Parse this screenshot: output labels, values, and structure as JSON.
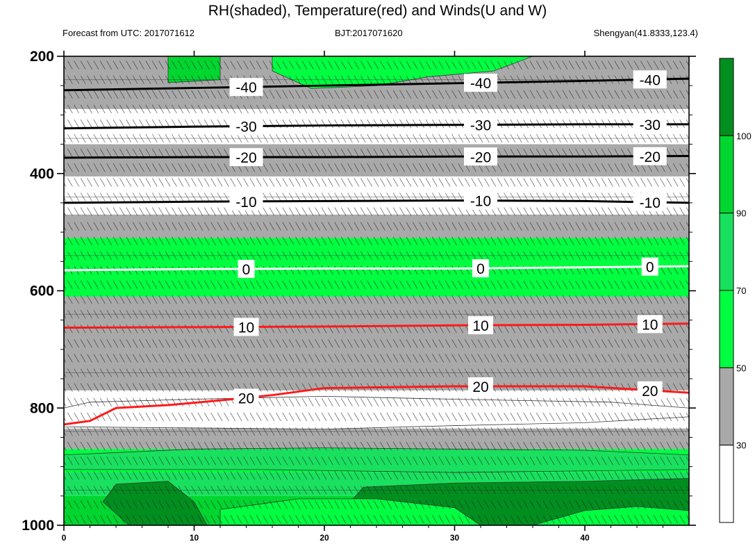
{
  "header": {
    "title": "RH(shaded), Temperature(red) and Winds(U and W)",
    "left": "Forecast from UTC: 2017071612",
    "center": "BJT:2017071620",
    "right": "Shengyan(41.8333,123.4)"
  },
  "colors": {
    "rh_lt30": "#ffffff",
    "rh_30_50": "#a9a9a9",
    "rh_50_70": "#00ff41",
    "rh_70_90": "#19e05e",
    "rh_90_100": "#00d62f",
    "rh_gt100": "#008f1f",
    "temp_positive": "#ff1a1a",
    "temp_zero": "#ffffff",
    "temp_negative": "#000000"
  },
  "chart_data": {
    "type": "heatmap",
    "xlim": [
      0,
      48
    ],
    "ylim": [
      1000,
      200
    ],
    "x_ticks": [
      "0",
      "10",
      "20",
      "30",
      "40"
    ],
    "y_ticks": [
      "200",
      "400",
      "600",
      "800",
      "1000"
    ],
    "colorbar": {
      "levels": [
        "30",
        "50",
        "70",
        "90",
        "100"
      ],
      "colors": [
        "#ffffff",
        "#a9a9a9",
        "#00ff41",
        "#19e05e",
        "#00d62f",
        "#008f1f"
      ]
    },
    "temperature_contours": [
      {
        "value": -40,
        "label": "-40",
        "color": "#000000",
        "points": [
          [
            0,
            258
          ],
          [
            10,
            254
          ],
          [
            20,
            250
          ],
          [
            30,
            246
          ],
          [
            40,
            242
          ],
          [
            48,
            238
          ]
        ]
      },
      {
        "value": -30,
        "label": "-30",
        "color": "#000000",
        "points": [
          [
            0,
            323
          ],
          [
            10,
            320
          ],
          [
            20,
            318
          ],
          [
            30,
            317
          ],
          [
            40,
            316
          ],
          [
            48,
            316
          ]
        ]
      },
      {
        "value": -20,
        "label": "-20",
        "color": "#000000",
        "points": [
          [
            0,
            373
          ],
          [
            10,
            372
          ],
          [
            20,
            372
          ],
          [
            30,
            371
          ],
          [
            40,
            371
          ],
          [
            48,
            370
          ]
        ]
      },
      {
        "value": -10,
        "label": "-10",
        "color": "#000000",
        "points": [
          [
            0,
            450
          ],
          [
            10,
            448
          ],
          [
            20,
            447
          ],
          [
            30,
            446
          ],
          [
            40,
            447
          ],
          [
            48,
            450
          ]
        ]
      },
      {
        "value": 0,
        "label": "0",
        "color": "#ffffff",
        "points": [
          [
            0,
            565
          ],
          [
            10,
            563
          ],
          [
            20,
            562
          ],
          [
            30,
            562
          ],
          [
            40,
            560
          ],
          [
            48,
            558
          ]
        ]
      },
      {
        "value": 10,
        "label": "10",
        "color": "#ff1a1a",
        "points": [
          [
            0,
            663
          ],
          [
            10,
            662
          ],
          [
            20,
            661
          ],
          [
            30,
            659
          ],
          [
            40,
            658
          ],
          [
            48,
            656
          ]
        ]
      },
      {
        "value": 20,
        "label": "20",
        "color": "#ff1a1a",
        "points": [
          [
            0,
            828
          ],
          [
            2,
            822
          ],
          [
            4,
            800
          ],
          [
            8,
            795
          ],
          [
            12,
            787
          ],
          [
            16,
            778
          ],
          [
            20,
            766
          ],
          [
            30,
            763
          ],
          [
            40,
            763
          ],
          [
            48,
            774
          ]
        ]
      }
    ],
    "rh_bands": [
      {
        "class": "rh_30_50",
        "top": 200,
        "bottom": 290
      },
      {
        "class": "rh_lt30",
        "top": 290,
        "bottom": 350
      },
      {
        "class": "rh_30_50",
        "top": 350,
        "bottom": 405
      },
      {
        "class": "rh_lt30",
        "top": 405,
        "bottom": 470
      },
      {
        "class": "rh_30_50",
        "top": 470,
        "bottom": 510
      },
      {
        "class": "rh_50_70",
        "top": 510,
        "bottom": 610
      },
      {
        "class": "rh_30_50",
        "top": 610,
        "bottom": 770
      },
      {
        "class": "rh_lt30",
        "top": 770,
        "bottom": 835
      },
      {
        "class": "rh_30_50",
        "top": 835,
        "bottom": 870
      },
      {
        "class": "rh_50_70",
        "top": 870,
        "bottom": 910
      },
      {
        "class": "rh_70_90",
        "top": 910,
        "bottom": 950
      },
      {
        "class": "rh_90_100",
        "top": 950,
        "bottom": 1000
      }
    ],
    "rh_blobs": [
      {
        "class": "rh_gt100",
        "points": [
          [
            4,
            930
          ],
          [
            8,
            925
          ],
          [
            10,
            960
          ],
          [
            11,
            1000
          ],
          [
            5,
            1000
          ],
          [
            3,
            960
          ]
        ]
      },
      {
        "class": "rh_gt100",
        "points": [
          [
            23,
            935
          ],
          [
            30,
            928
          ],
          [
            40,
            925
          ],
          [
            48,
            920
          ],
          [
            48,
            1000
          ],
          [
            26,
            1000
          ],
          [
            22,
            960
          ]
        ]
      },
      {
        "class": "rh_90_100",
        "points": [
          [
            8,
            200
          ],
          [
            12,
            200
          ],
          [
            12,
            240
          ],
          [
            8,
            245
          ]
        ]
      },
      {
        "class": "rh_50_70",
        "points": [
          [
            16,
            200
          ],
          [
            36,
            200
          ],
          [
            33,
            225
          ],
          [
            28,
            235
          ],
          [
            24,
            250
          ],
          [
            19,
            255
          ],
          [
            16,
            225
          ]
        ]
      },
      {
        "class": "rh_lt30",
        "points": [
          [
            0,
            800
          ],
          [
            2,
            790
          ],
          [
            10,
            785
          ],
          [
            20,
            780
          ],
          [
            30,
            785
          ],
          [
            42,
            790
          ],
          [
            48,
            800
          ],
          [
            48,
            815
          ],
          [
            40,
            825
          ],
          [
            30,
            830
          ],
          [
            20,
            836
          ],
          [
            10,
            834
          ],
          [
            0,
            832
          ]
        ]
      },
      {
        "class": "rh_70_90",
        "points": [
          [
            0,
            880
          ],
          [
            10,
            870
          ],
          [
            20,
            868
          ],
          [
            30,
            870
          ],
          [
            40,
            872
          ],
          [
            48,
            880
          ],
          [
            48,
            905
          ],
          [
            30,
            910
          ],
          [
            15,
            905
          ],
          [
            0,
            905
          ]
        ]
      },
      {
        "class": "rh_50_70",
        "points": [
          [
            12,
            973
          ],
          [
            18,
            955
          ],
          [
            24,
            955
          ],
          [
            30,
            970
          ],
          [
            32,
            1000
          ],
          [
            12,
            1000
          ]
        ]
      },
      {
        "class": "rh_50_70",
        "points": [
          [
            36,
            1000
          ],
          [
            40,
            975
          ],
          [
            44,
            968
          ],
          [
            48,
            975
          ],
          [
            48,
            1000
          ]
        ]
      }
    ],
    "wind_rows": [
      215,
      240,
      265,
      290,
      315,
      340,
      365,
      390,
      415,
      440,
      465,
      490,
      515,
      540,
      565,
      590,
      615,
      640,
      665,
      690,
      715,
      740,
      765,
      790,
      815,
      840,
      865,
      890,
      915,
      940,
      965,
      990
    ]
  }
}
